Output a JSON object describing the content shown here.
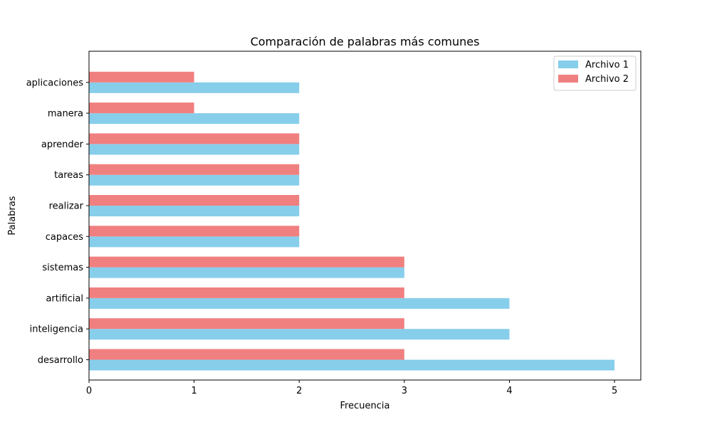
{
  "chart_data": {
    "type": "bar",
    "orientation": "horizontal",
    "title": "Comparación de palabras más comunes",
    "xlabel": "Frecuencia",
    "ylabel": "Palabras",
    "categories": [
      "desarrollo",
      "inteligencia",
      "artificial",
      "sistemas",
      "capaces",
      "realizar",
      "tareas",
      "aprender",
      "manera",
      "aplicaciones"
    ],
    "series": [
      {
        "name": "Archivo 1",
        "color": "#87ceeb",
        "values": [
          5,
          4,
          4,
          3,
          2,
          2,
          2,
          2,
          2,
          2
        ]
      },
      {
        "name": "Archivo 2",
        "color": "#f08080",
        "values": [
          3,
          3,
          3,
          3,
          2,
          2,
          2,
          2,
          1,
          1
        ]
      }
    ],
    "xlim": [
      0,
      5.25
    ],
    "xticks": [
      0,
      1,
      2,
      3,
      4,
      5
    ],
    "grid": false,
    "legend_position": "top-right"
  }
}
